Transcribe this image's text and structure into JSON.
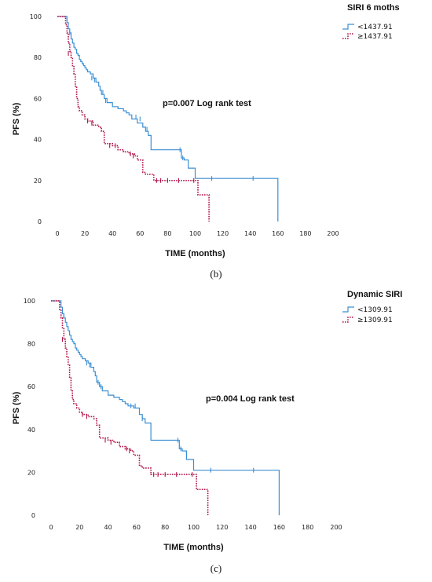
{
  "chart_data": [
    {
      "type": "line",
      "panel_caption": "(b)",
      "xlabel": "TIME (months)",
      "ylabel": "PFS (%)",
      "xlim": [
        0,
        200
      ],
      "ylim": [
        0,
        100
      ],
      "xticks": [
        0,
        20,
        40,
        60,
        80,
        100,
        120,
        140,
        160,
        180,
        200
      ],
      "yticks": [
        0,
        20,
        40,
        60,
        80,
        100
      ],
      "annotation": "p=0.007 Log rank test",
      "legend_title": "SIRI 6 moths",
      "legend_placement": "top-right",
      "grid": false,
      "series": [
        {
          "name": "<1437.91",
          "color": "#3b8fd4",
          "style": "solid",
          "x": [
            0,
            6,
            7,
            8,
            9,
            10,
            11,
            12,
            13,
            14,
            15,
            16,
            17,
            18,
            19,
            20,
            21,
            22,
            24,
            26,
            28,
            30,
            31,
            32,
            34,
            36,
            40,
            44,
            48,
            50,
            52,
            54,
            58,
            62,
            64,
            66,
            68,
            90,
            92,
            95,
            100,
            160,
            160
          ],
          "y": [
            100,
            100,
            97,
            94,
            92,
            89,
            87,
            85,
            84,
            82,
            81,
            79,
            78,
            77,
            76,
            75,
            74,
            73,
            72,
            70,
            68,
            66,
            64,
            62,
            60,
            58,
            56,
            55,
            54,
            53,
            52,
            50,
            48,
            46,
            44,
            42,
            35,
            31,
            30,
            26,
            21,
            21,
            0
          ],
          "censored": [
            [
              9,
              92
            ],
            [
              25,
              70
            ],
            [
              27,
              69
            ],
            [
              33,
              63
            ],
            [
              35,
              59
            ],
            [
              57,
              51
            ],
            [
              60,
              50
            ],
            [
              65,
              45
            ],
            [
              89,
              35
            ],
            [
              91,
              31
            ],
            [
              112,
              21
            ],
            [
              142,
              21
            ]
          ]
        },
        {
          "name": "≥1437.91",
          "color": "#b0134a",
          "style": "dotted",
          "x": [
            0,
            5,
            6,
            7,
            8,
            9,
            10,
            11,
            12,
            13,
            14,
            15,
            16,
            18,
            20,
            22,
            26,
            30,
            32,
            34,
            40,
            44,
            48,
            52,
            56,
            58,
            62,
            64,
            66,
            70,
            100,
            102,
            108,
            110,
            110
          ],
          "y": [
            100,
            100,
            96,
            92,
            87,
            83,
            80,
            76,
            72,
            66,
            60,
            56,
            54,
            52,
            50,
            49,
            47,
            46,
            44,
            38,
            37,
            35,
            34,
            33,
            32,
            30,
            24,
            23,
            23,
            20,
            20,
            13,
            13,
            13,
            0
          ],
          "censored": [
            [
              8,
              82
            ],
            [
              22,
              49
            ],
            [
              25,
              48
            ],
            [
              38,
              37
            ],
            [
              42,
              37
            ],
            [
              53,
              33
            ],
            [
              55,
              32
            ],
            [
              72,
              20
            ],
            [
              75,
              20
            ],
            [
              80,
              20
            ],
            [
              88,
              20
            ],
            [
              99,
              20
            ]
          ]
        }
      ]
    },
    {
      "type": "line",
      "panel_caption": "(c)",
      "xlabel": "TIME (months)",
      "ylabel": "PFS (%)",
      "xlim": [
        0,
        200
      ],
      "ylim": [
        0,
        100
      ],
      "xticks": [
        0,
        20,
        40,
        60,
        80,
        100,
        120,
        140,
        160,
        180,
        200
      ],
      "yticks": [
        0,
        20,
        40,
        60,
        80,
        100
      ],
      "annotation": "p=0.004 Log rank test",
      "legend_title": "Dynamic SIRI",
      "legend_placement": "top-right",
      "grid": false,
      "series": [
        {
          "name": "<1309.91",
          "color": "#3b8fd4",
          "style": "solid",
          "x": [
            0,
            6,
            7,
            8,
            9,
            10,
            11,
            12,
            13,
            14,
            15,
            16,
            17,
            18,
            19,
            20,
            21,
            22,
            24,
            26,
            28,
            30,
            31,
            32,
            34,
            36,
            40,
            44,
            48,
            50,
            52,
            54,
            58,
            62,
            64,
            66,
            70,
            90,
            92,
            95,
            100,
            160,
            160
          ],
          "y": [
            100,
            100,
            97,
            94,
            92,
            90,
            88,
            86,
            84,
            82,
            81,
            80,
            78,
            77,
            76,
            75,
            74,
            73,
            72,
            71,
            69,
            67,
            65,
            62,
            60,
            58,
            56,
            55,
            54,
            53,
            52,
            51,
            50,
            47,
            45,
            43,
            35,
            31,
            30,
            26,
            21,
            21,
            0
          ],
          "censored": [
            [
              9,
              93
            ],
            [
              25,
              71
            ],
            [
              27,
              70
            ],
            [
              33,
              62
            ],
            [
              35,
              60
            ],
            [
              56,
              51
            ],
            [
              59,
              51
            ],
            [
              64,
              45
            ],
            [
              89,
              35
            ],
            [
              91,
              31
            ],
            [
              112,
              21
            ],
            [
              142,
              21
            ]
          ]
        },
        {
          "name": "≥1309.91",
          "color": "#b0134a",
          "style": "dotted",
          "x": [
            0,
            5,
            6,
            7,
            8,
            9,
            10,
            11,
            12,
            13,
            14,
            15,
            16,
            18,
            20,
            22,
            26,
            30,
            32,
            34,
            40,
            44,
            48,
            52,
            56,
            58,
            62,
            64,
            66,
            70,
            100,
            102,
            108,
            110,
            110
          ],
          "y": [
            100,
            100,
            96,
            92,
            87,
            82,
            78,
            74,
            70,
            64,
            58,
            54,
            52,
            50,
            48,
            47,
            46,
            45,
            42,
            36,
            35,
            34,
            32,
            31,
            30,
            28,
            23,
            22,
            22,
            19,
            19,
            12,
            12,
            12,
            0
          ],
          "censored": [
            [
              8,
              82
            ],
            [
              22,
              47
            ],
            [
              25,
              46
            ],
            [
              38,
              35
            ],
            [
              42,
              34
            ],
            [
              53,
              31
            ],
            [
              55,
              30
            ],
            [
              72,
              19
            ],
            [
              75,
              19
            ],
            [
              80,
              19
            ],
            [
              88,
              19
            ],
            [
              99,
              19
            ]
          ]
        }
      ]
    }
  ]
}
